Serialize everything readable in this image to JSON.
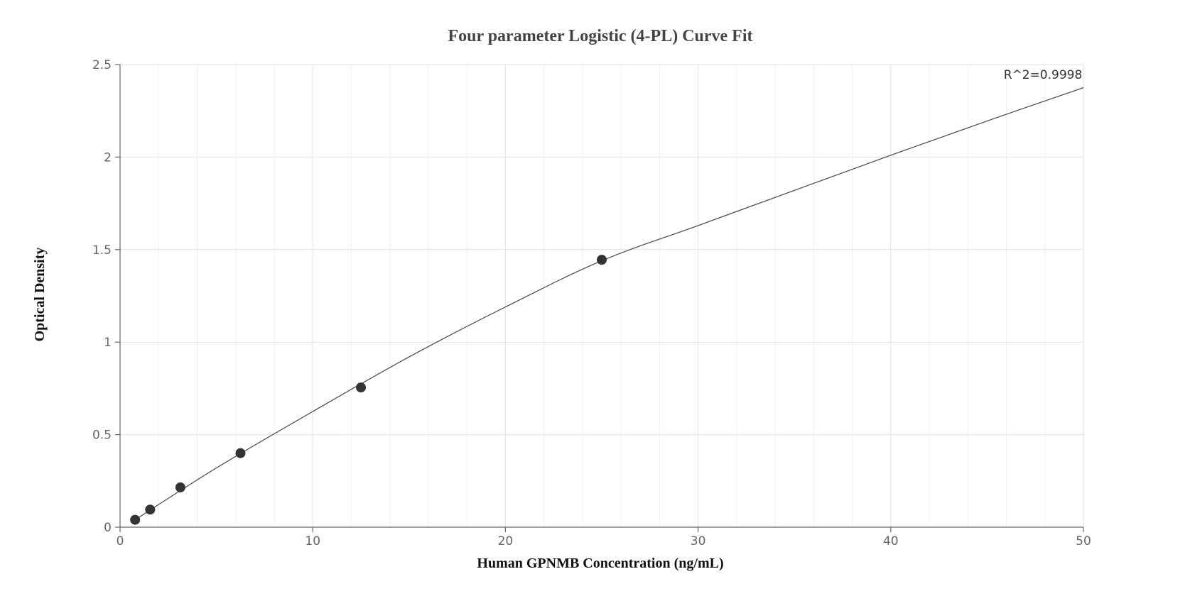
{
  "chart_data": {
    "type": "scatter",
    "title": "Four parameter Logistic (4-PL) Curve Fit",
    "xlabel": "Human GPNMB Concentration (ng/mL)",
    "ylabel": "Optical Density",
    "xlim": [
      0,
      50
    ],
    "ylim": [
      0,
      2.5
    ],
    "x_ticks": [
      0,
      10,
      20,
      30,
      40,
      50
    ],
    "y_ticks": [
      0,
      0.5,
      1,
      1.5,
      2,
      2.5
    ],
    "x_tick_labels": [
      "0",
      "10",
      "20",
      "30",
      "40",
      "50"
    ],
    "y_tick_labels": [
      "0",
      "0.5",
      "1",
      "1.5",
      "2",
      "2.5"
    ],
    "grid": true,
    "series": [
      {
        "kind": "points",
        "x": [
          0.78,
          1.56,
          3.13,
          6.25,
          12.5,
          25
        ],
        "y": [
          0.04,
          0.095,
          0.215,
          0.4,
          0.755,
          1.445
        ]
      },
      {
        "kind": "fit-curve",
        "x": [
          0.78,
          5,
          10,
          15,
          20,
          25,
          30,
          35,
          40,
          45,
          50
        ],
        "y": [
          0.04,
          0.32,
          0.625,
          0.92,
          1.19,
          1.44,
          1.63,
          1.82,
          2.01,
          2.195,
          2.375
        ]
      }
    ],
    "annotations": [
      {
        "text": "R^2=0.9998"
      }
    ],
    "colors": {
      "points": "#333333",
      "curve": "#444444",
      "grid": "#dde1ec"
    }
  }
}
